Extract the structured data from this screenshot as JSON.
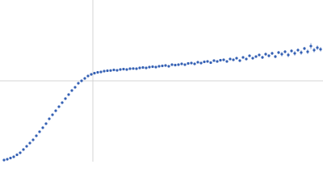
{
  "chart_data": {
    "type": "scatter",
    "color": "#3561b4",
    "error_color": "#9fb3dc",
    "xlim": [
      0,
      400
    ],
    "ylim": [
      0,
      200
    ],
    "reference_lines": {
      "x": [
        115
      ],
      "y": [
        100
      ],
      "color": "#d4d4d4"
    },
    "x": [
      5,
      9,
      13,
      17,
      21,
      25,
      29,
      33,
      37,
      41,
      45,
      49,
      53,
      57,
      61,
      65,
      69,
      73,
      77,
      81,
      85,
      89,
      93,
      97,
      101,
      105,
      109,
      113,
      117,
      121,
      125,
      129,
      133,
      137,
      141,
      145,
      149,
      153,
      157,
      161,
      165,
      169,
      173,
      177,
      181,
      185,
      189,
      193,
      197,
      201,
      205,
      209,
      213,
      217,
      221,
      225,
      229,
      233,
      237,
      241,
      245,
      249,
      253,
      257,
      261,
      265,
      269,
      273,
      277,
      281,
      285,
      289,
      293,
      297,
      301,
      305,
      309,
      313,
      317,
      321,
      325,
      329,
      333,
      337,
      341,
      345,
      349,
      353,
      357,
      361,
      365,
      369,
      373,
      377,
      381,
      385,
      389,
      393,
      397
    ],
    "values": [
      2,
      3,
      4.5,
      6,
      8.5,
      11,
      15,
      19,
      23,
      27,
      32,
      37,
      42,
      47,
      53,
      58,
      63,
      68,
      73,
      78,
      83,
      88,
      92,
      97,
      100,
      103,
      106,
      108,
      109.5,
      110.5,
      111,
      112,
      112.5,
      112.8,
      113.5,
      113,
      114,
      114.5,
      114,
      115,
      115.2,
      115,
      116,
      116.5,
      116,
      117,
      117.5,
      117,
      118,
      118.5,
      119,
      118,
      120,
      119.5,
      120,
      121,
      120,
      121.5,
      122,
      121,
      123,
      122,
      123.5,
      124,
      122.5,
      125,
      124,
      125.5,
      126,
      124,
      127,
      126,
      128,
      125,
      129,
      127,
      131,
      128,
      130,
      132,
      129,
      133,
      131,
      134,
      130,
      135,
      133,
      136,
      132,
      137,
      134,
      138,
      135,
      140,
      136,
      143,
      138,
      141,
      139
    ],
    "errors": [
      0.3,
      0.3,
      0.3,
      0.3,
      0.3,
      0.3,
      0.3,
      0.3,
      0.3,
      0.3,
      0.3,
      0.3,
      0.3,
      0.3,
      0.3,
      0.3,
      0.3,
      0.3,
      0.3,
      0.3,
      0.3,
      0.3,
      0.3,
      0.3,
      0.3,
      0.3,
      0.3,
      0.3,
      0.3,
      0.5,
      0.5,
      0.5,
      0.5,
      0.5,
      0.5,
      0.5,
      0.5,
      0.5,
      0.5,
      0.5,
      0.5,
      0.5,
      0.5,
      0.5,
      0.5,
      0.5,
      0.5,
      0.5,
      0.5,
      0.5,
      0.5,
      0.5,
      0.5,
      0.5,
      0.5,
      0.5,
      0.5,
      0.5,
      0.5,
      0.5,
      1,
      1,
      1,
      1,
      1,
      1,
      1,
      1,
      1,
      1,
      1,
      1,
      1,
      1,
      1,
      1,
      1,
      1,
      1,
      1,
      2,
      2,
      2,
      2,
      2,
      2,
      3,
      2,
      3,
      2,
      3,
      2,
      3,
      2,
      3,
      4,
      3,
      3,
      3
    ]
  }
}
